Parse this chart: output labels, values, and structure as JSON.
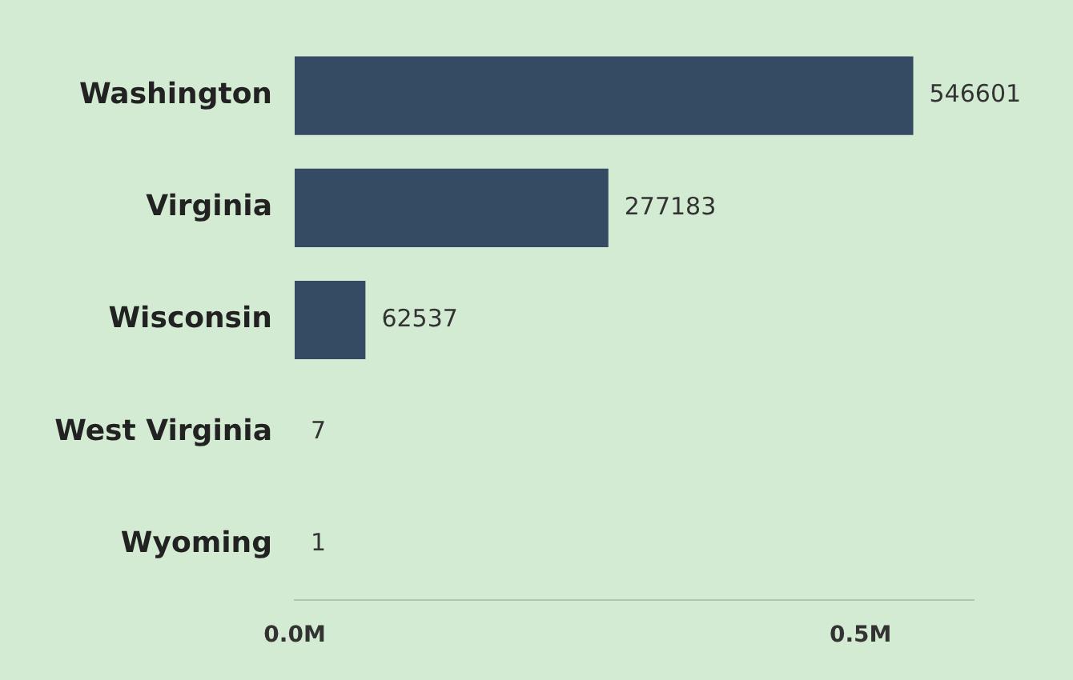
{
  "chart_data": {
    "type": "bar",
    "orientation": "horizontal",
    "categories": [
      "Washington",
      "Virginia",
      "Wisconsin",
      "West Virginia",
      "Wyoming"
    ],
    "values": [
      546601,
      277183,
      62537,
      7,
      1
    ],
    "color": "#344b63",
    "xlim": [
      0,
      600000
    ],
    "xticks": [
      {
        "value": 0,
        "label": "0.0M"
      },
      {
        "value": 500000,
        "label": "0.5M"
      }
    ],
    "data_labels": true,
    "legend": false,
    "grid": false
  }
}
